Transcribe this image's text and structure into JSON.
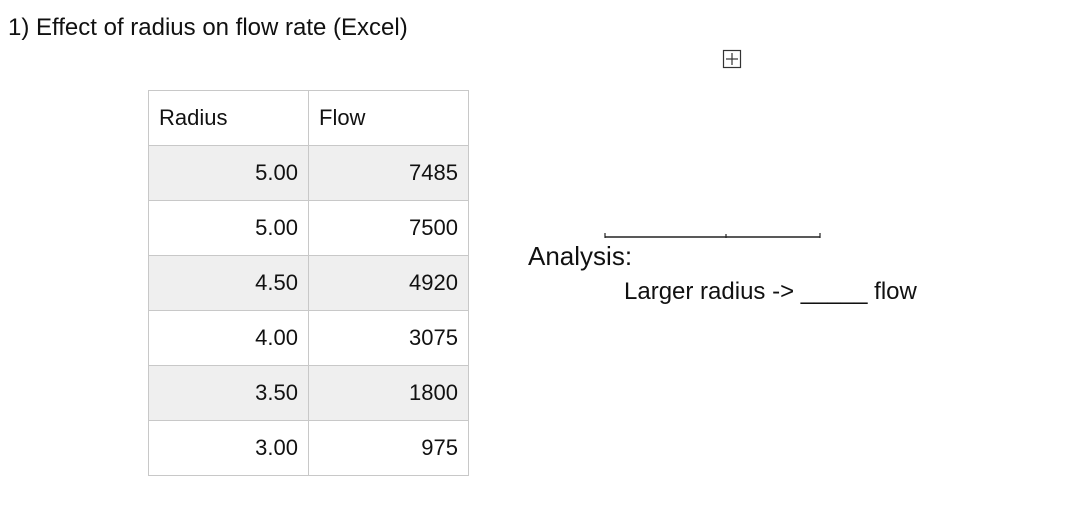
{
  "header": {
    "title": "1) Effect of radius on flow rate (Excel)"
  },
  "table": {
    "columns": [
      "Radius",
      "Flow"
    ],
    "rows": [
      [
        "5.00",
        "7485"
      ],
      [
        "5.00",
        "7500"
      ],
      [
        "4.50",
        "4920"
      ],
      [
        "4.00",
        "3075"
      ],
      [
        "3.50",
        "1800"
      ],
      [
        "3.00",
        "975"
      ]
    ]
  },
  "analysis": {
    "label": "Analysis:",
    "text": "Larger radius -> _____ flow"
  }
}
